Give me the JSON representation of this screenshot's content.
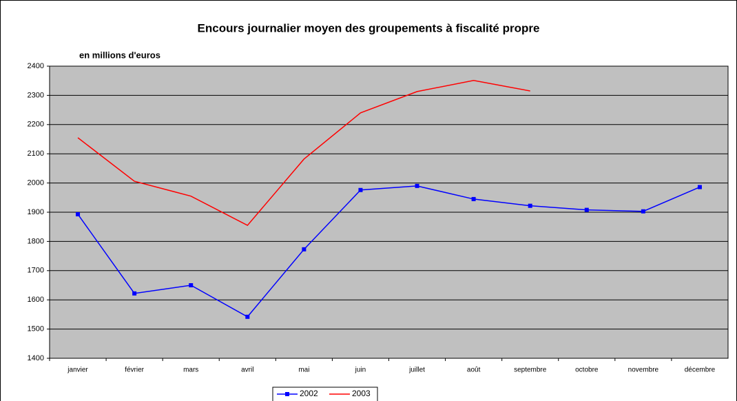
{
  "chart_data": {
    "type": "line",
    "title": "Encours journalier moyen des groupements à fiscalité propre",
    "subtitle": "en millions d'euros",
    "categories": [
      "janvier",
      "février",
      "mars",
      "avril",
      "mai",
      "juin",
      "juillet",
      "août",
      "septembre",
      "octobre",
      "novembre",
      "décembre"
    ],
    "series": [
      {
        "name": "2002",
        "color": "#0000ff",
        "marker": "square",
        "values": [
          1893,
          1622,
          1650,
          1542,
          1773,
          1976,
          1990,
          1945,
          1922,
          1908,
          1903,
          1986
        ]
      },
      {
        "name": "2003",
        "color": "#ff0000",
        "values": [
          2155,
          2006,
          1955,
          1855,
          2082,
          2240,
          2313,
          2351,
          2315,
          null,
          null,
          null
        ]
      }
    ],
    "ylim": [
      1400,
      2400
    ],
    "yticks": [
      1400,
      1500,
      1600,
      1700,
      1800,
      1900,
      2000,
      2100,
      2200,
      2300,
      2400
    ],
    "grid": true,
    "legend": "bottom"
  }
}
